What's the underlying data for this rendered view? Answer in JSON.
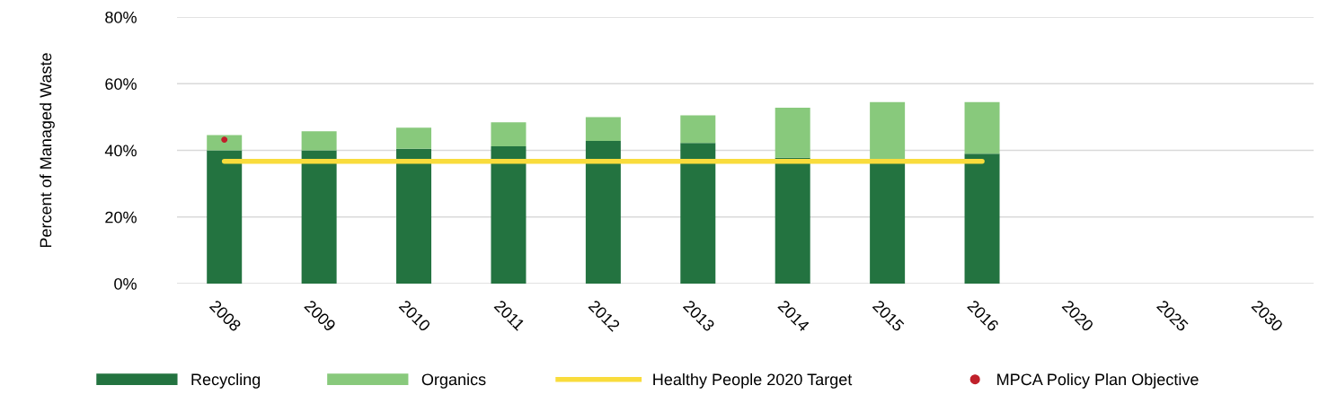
{
  "chart_data": {
    "type": "bar",
    "stacked": true,
    "ylabel": "Percent of Managed Waste",
    "categories": [
      "2008",
      "2009",
      "2010",
      "2011",
      "2012",
      "2013",
      "2014",
      "2015",
      "2016",
      "2020",
      "2025",
      "2030"
    ],
    "series": [
      {
        "name": "Recycling",
        "color": "#237340",
        "values": [
          40.0,
          40.0,
          40.5,
          41.2,
          42.8,
          42.2,
          37.8,
          36.8,
          39.0,
          null,
          null,
          null
        ]
      },
      {
        "name": "Organics",
        "color": "#88c97c",
        "values": [
          4.6,
          5.7,
          6.3,
          7.2,
          7.2,
          8.3,
          15.0,
          17.7,
          15.5,
          null,
          null,
          null
        ]
      },
      {
        "name": "Healthy People 2020 Target",
        "type": "line",
        "color": "#f9dc3c",
        "values": [
          36.7,
          36.7,
          36.7,
          36.7,
          36.7,
          36.7,
          36.7,
          36.7,
          36.7,
          null,
          null,
          null
        ]
      },
      {
        "name": "MPCA Policy Plan Objective",
        "type": "scatter",
        "marker": "circle",
        "color": "#c0202a",
        "values": [
          43.2,
          null,
          null,
          null,
          null,
          null,
          null,
          null,
          null,
          null,
          null,
          null
        ]
      }
    ],
    "ylim": [
      0,
      80
    ],
    "yticks": [
      {
        "value": 0,
        "label": "0%"
      },
      {
        "value": 20,
        "label": "20%"
      },
      {
        "value": 40,
        "label": "40%"
      },
      {
        "value": 60,
        "label": "60%"
      },
      {
        "value": 80,
        "label": "80%"
      }
    ],
    "grid": "y",
    "legend": "bottom"
  }
}
